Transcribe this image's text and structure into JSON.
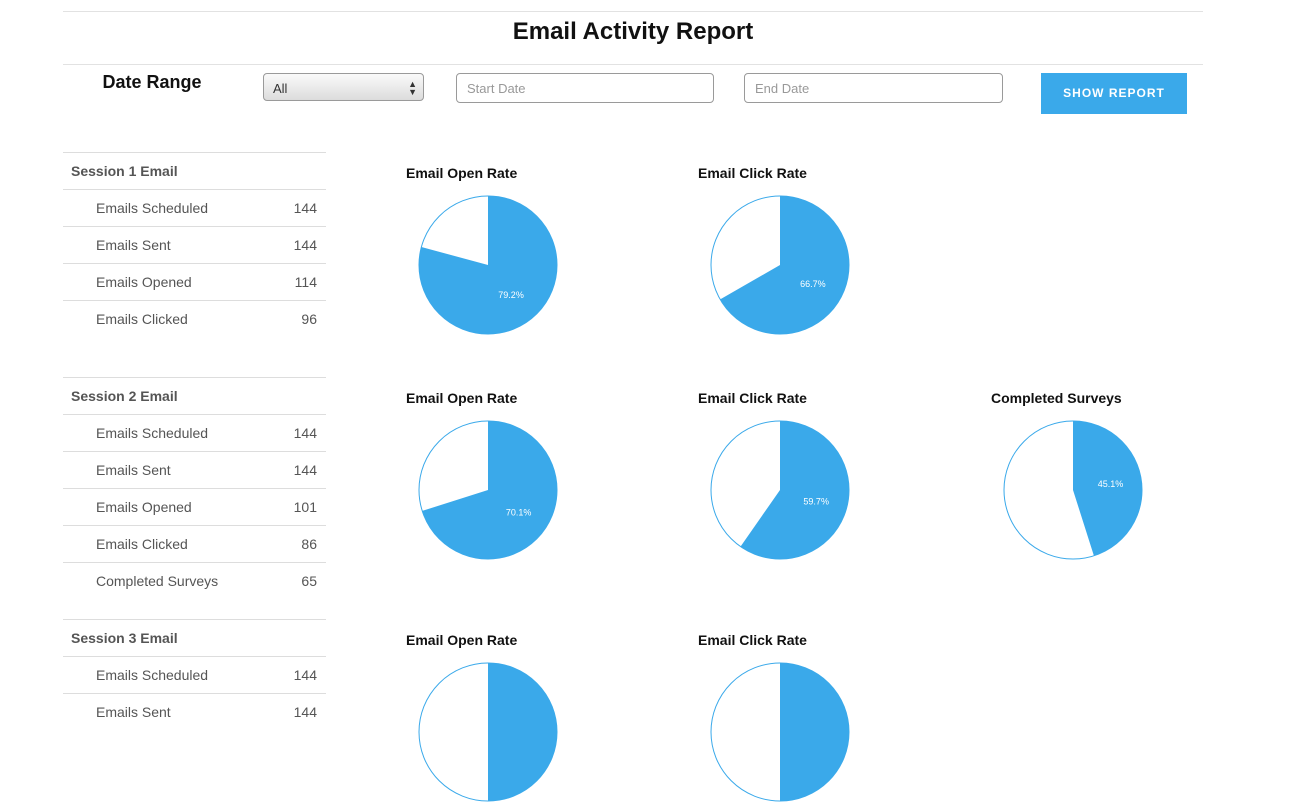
{
  "title": "Email Activity Report",
  "filters": {
    "date_range_label": "Date Range",
    "range_selected": "All",
    "start_placeholder": "Start Date",
    "end_placeholder": "End Date",
    "button_label": "SHOW REPORT"
  },
  "sessions": [
    {
      "name": "Session 1 Email",
      "rows": [
        {
          "label": "Emails Scheduled",
          "value": "144"
        },
        {
          "label": "Emails Sent",
          "value": "144"
        },
        {
          "label": "Emails Opened",
          "value": "114"
        },
        {
          "label": "Emails Clicked",
          "value": "96"
        }
      ]
    },
    {
      "name": "Session 2 Email",
      "rows": [
        {
          "label": "Emails Scheduled",
          "value": "144"
        },
        {
          "label": "Emails Sent",
          "value": "144"
        },
        {
          "label": "Emails Opened",
          "value": "101"
        },
        {
          "label": "Emails Clicked",
          "value": "86"
        },
        {
          "label": "Completed Surveys",
          "value": "65"
        }
      ]
    },
    {
      "name": "Session 3 Email",
      "rows": [
        {
          "label": "Emails Scheduled",
          "value": "144"
        },
        {
          "label": "Emails Sent",
          "value": "144"
        }
      ]
    }
  ],
  "colors": {
    "accent": "#3aa9ea"
  },
  "chart_data": [
    {
      "type": "pie",
      "title": "Email Open Rate",
      "values": [
        79.2,
        20.8
      ],
      "labels": [
        "79.2%",
        ""
      ]
    },
    {
      "type": "pie",
      "title": "Email Click Rate",
      "values": [
        66.7,
        33.3
      ],
      "labels": [
        "66.7%",
        ""
      ]
    },
    {
      "type": "pie",
      "title": "Email Open Rate",
      "values": [
        70.1,
        29.9
      ],
      "labels": [
        "70.1%",
        ""
      ]
    },
    {
      "type": "pie",
      "title": "Email Click Rate",
      "values": [
        59.7,
        40.3
      ],
      "labels": [
        "59.7%",
        ""
      ]
    },
    {
      "type": "pie",
      "title": "Completed Surveys",
      "values": [
        45.1,
        54.9
      ],
      "labels": [
        "45.1%",
        ""
      ]
    },
    {
      "type": "pie",
      "title": "Email Open Rate",
      "values": [],
      "labels": []
    },
    {
      "type": "pie",
      "title": "Email Click Rate",
      "values": [],
      "labels": []
    }
  ]
}
